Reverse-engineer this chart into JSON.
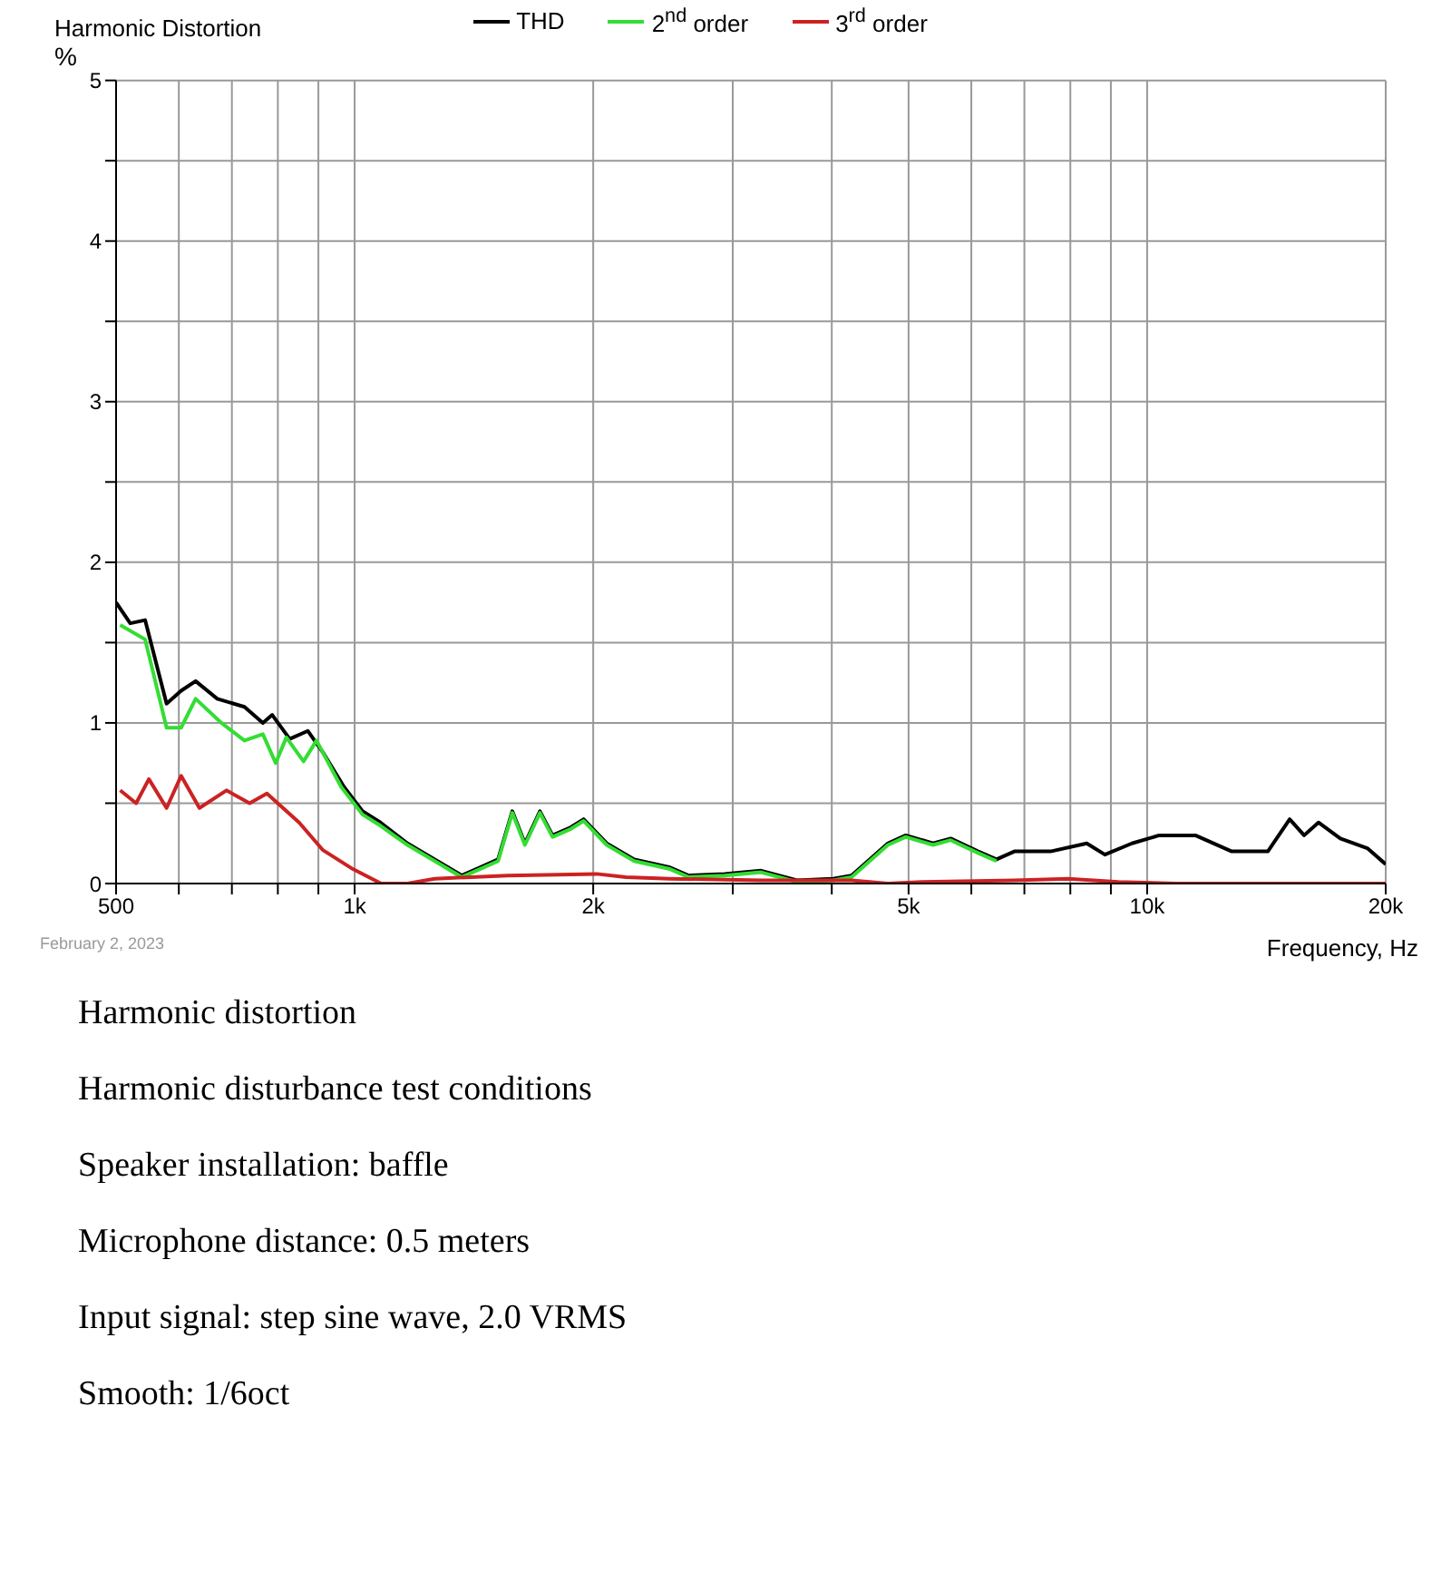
{
  "chart_data": {
    "type": "line",
    "title": "Harmonic Distortion",
    "ylabel": "%",
    "xlabel": "Frequency, Hz",
    "log": "x",
    "grid": true,
    "legend": "top",
    "xlim": [
      500,
      20000
    ],
    "ylim": [
      0,
      5
    ],
    "xticks": [
      {
        "value": 500,
        "label": "500"
      },
      {
        "value": 600,
        "label": null
      },
      {
        "value": 700,
        "label": null
      },
      {
        "value": 800,
        "label": null
      },
      {
        "value": 900,
        "label": null
      },
      {
        "value": 1000,
        "label": "1k"
      },
      {
        "value": 2000,
        "label": "2k"
      },
      {
        "value": 3000,
        "label": null
      },
      {
        "value": 4000,
        "label": null
      },
      {
        "value": 5000,
        "label": "5k"
      },
      {
        "value": 6000,
        "label": null
      },
      {
        "value": 7000,
        "label": null
      },
      {
        "value": 8000,
        "label": null
      },
      {
        "value": 9000,
        "label": null
      },
      {
        "value": 10000,
        "label": "10k"
      },
      {
        "value": 20000,
        "label": "20k"
      }
    ],
    "yticks": [
      0,
      {
        "value": 0.5,
        "label": null
      },
      1,
      {
        "value": 1.5,
        "label": null
      },
      2,
      {
        "value": 2.5,
        "label": null
      },
      3,
      {
        "value": 3.5,
        "label": null
      },
      4,
      {
        "value": 4.5,
        "label": null
      },
      5
    ],
    "series": [
      {
        "name": "THD",
        "color": "#000000",
        "x": [
          500,
          521,
          544,
          579,
          604,
          630,
          671,
          726,
          766,
          787,
          828,
          873,
          911,
          970,
          1023,
          1078,
          1166,
          1262,
          1365,
          1439,
          1517,
          1581,
          1640,
          1713,
          1777,
          1874,
          1945,
          2080,
          2253,
          2500,
          2637,
          2930,
          3257,
          3615,
          4017,
          4236,
          4708,
          4959,
          5368,
          5651,
          6120,
          6455,
          6800,
          7551,
          8391,
          8845,
          9568,
          10356,
          11505,
          12787,
          14200,
          15130,
          15780,
          16450,
          17530,
          18960,
          20000
        ],
        "values": [
          1.75,
          1.62,
          1.64,
          1.12,
          1.2,
          1.26,
          1.15,
          1.1,
          1.0,
          1.05,
          0.9,
          0.95,
          0.82,
          0.6,
          0.45,
          0.38,
          0.25,
          0.15,
          0.05,
          0.1,
          0.15,
          0.45,
          0.25,
          0.45,
          0.3,
          0.35,
          0.4,
          0.25,
          0.15,
          0.1,
          0.05,
          0.06,
          0.08,
          0.02,
          0.03,
          0.05,
          0.25,
          0.3,
          0.25,
          0.28,
          0.2,
          0.15,
          0.2,
          0.2,
          0.25,
          0.18,
          0.25,
          0.3,
          0.3,
          0.2,
          0.2,
          0.4,
          0.3,
          0.38,
          0.28,
          0.22,
          0.12
        ]
      },
      {
        "name": "2$^{nd}$ order",
        "color": "#33dd33",
        "x": [
          506,
          544,
          579,
          604,
          630,
          679,
          726,
          766,
          795,
          820,
          862,
          895,
          962,
          1023,
          1078,
          1166,
          1262,
          1365,
          1439,
          1517,
          1581,
          1640,
          1713,
          1777,
          1874,
          1945,
          2080,
          2253,
          2500,
          2637,
          2930,
          3257,
          3615,
          4017,
          4236,
          4708,
          4959,
          5368,
          5651,
          6120,
          6455
        ],
        "values": [
          1.61,
          1.52,
          0.97,
          0.97,
          1.15,
          1.0,
          0.89,
          0.93,
          0.75,
          0.91,
          0.76,
          0.89,
          0.6,
          0.43,
          0.36,
          0.24,
          0.14,
          0.04,
          0.09,
          0.14,
          0.44,
          0.24,
          0.44,
          0.29,
          0.34,
          0.39,
          0.24,
          0.14,
          0.09,
          0.04,
          0.05,
          0.07,
          0.01,
          0.02,
          0.04,
          0.24,
          0.29,
          0.24,
          0.27,
          0.19,
          0.14
        ]
      },
      {
        "name": "3$^{rd}$ order",
        "color": "#cc2222",
        "x": [
          506,
          530,
          550,
          579,
          604,
          637,
          689,
          737,
          775,
          851,
          911,
          995,
          1080,
          1166,
          1262,
          1560,
          2020,
          2200,
          2500,
          3257,
          4236,
          4708,
          5200,
          6800,
          7950,
          9200,
          10900,
          20000
        ],
        "values": [
          0.58,
          0.5,
          0.65,
          0.47,
          0.67,
          0.47,
          0.58,
          0.5,
          0.56,
          0.38,
          0.21,
          0.09,
          0,
          0,
          0.03,
          0.05,
          0.06,
          0.04,
          0.03,
          0.02,
          0.02,
          0,
          0.01,
          0.02,
          0.03,
          0.01,
          0,
          0
        ]
      }
    ],
    "annotations": [
      "February 2, 2023",
      "Harmonic distortion",
      "Harmonic disturbance test conditions",
      "Speaker installation: baffle",
      "Microphone distance: 0.5 meters",
      "Input signal: step sine wave, 2.0 VRMS",
      "Smooth: 1/6oct"
    ]
  }
}
